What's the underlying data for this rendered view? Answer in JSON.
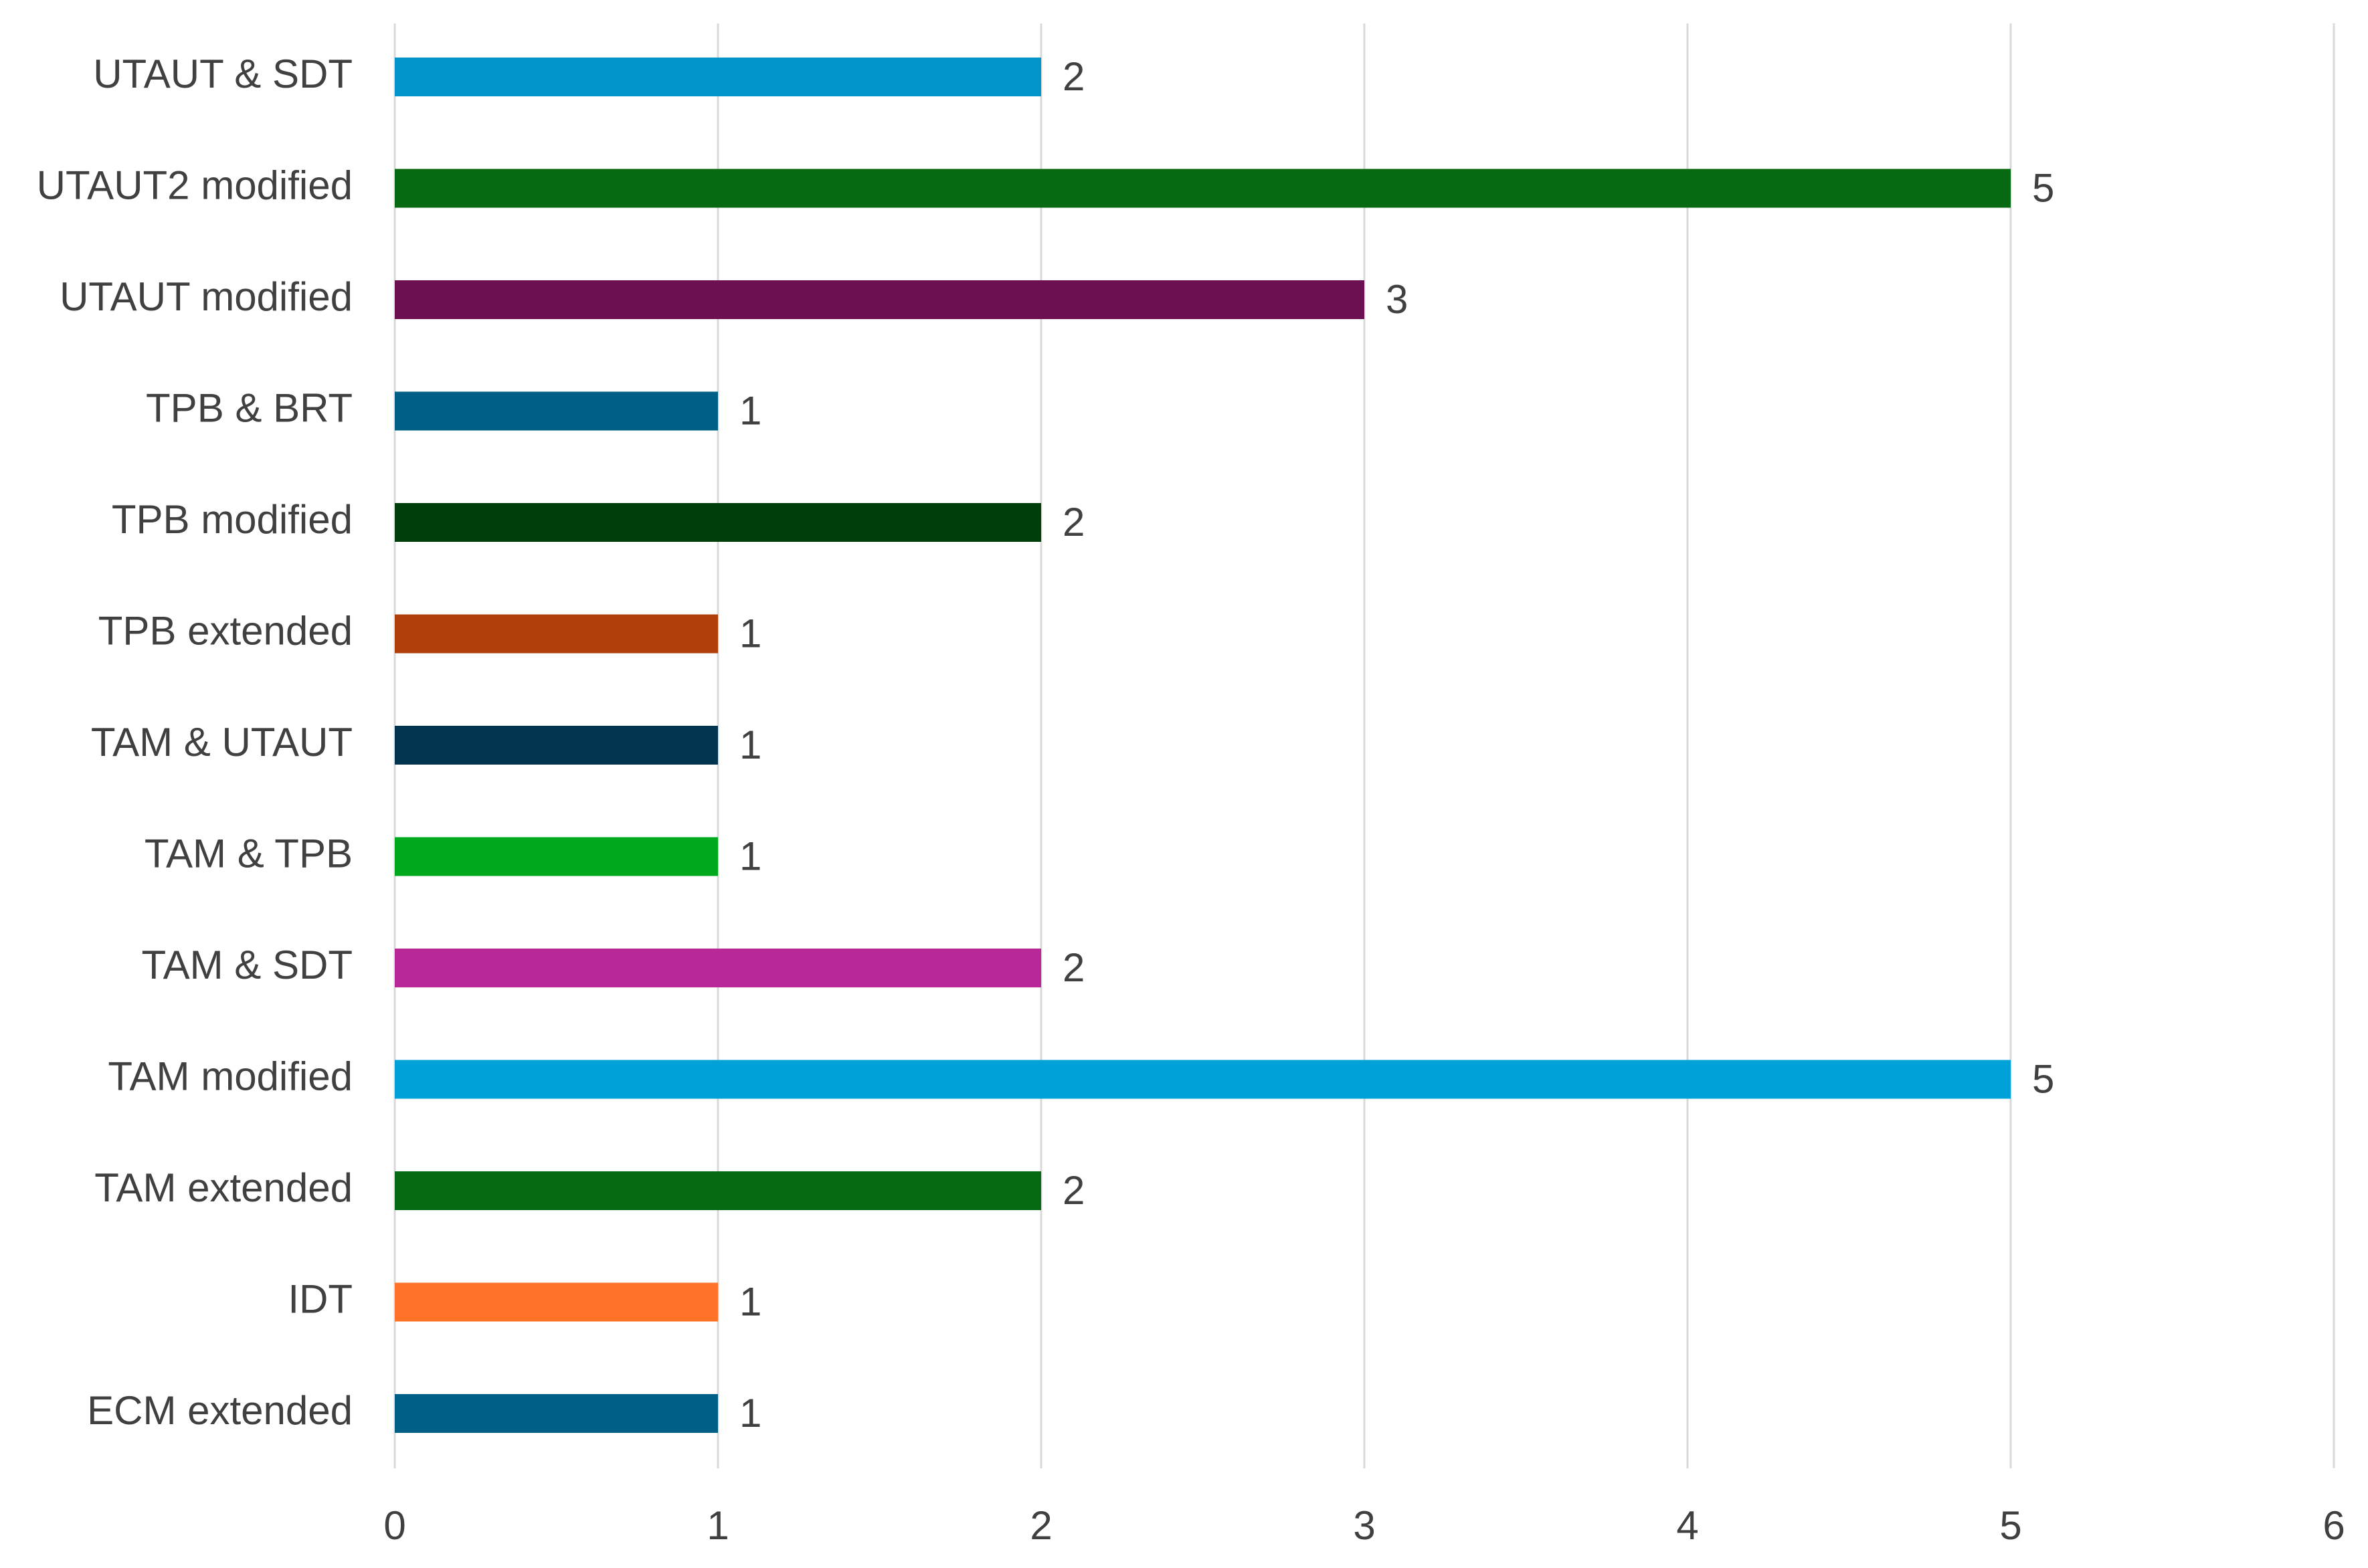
{
  "chart_data": {
    "type": "bar",
    "orientation": "horizontal",
    "title": "",
    "xlabel": "",
    "ylabel": "",
    "categories": [
      "UTAUT & SDT",
      "UTAUT2 modified",
      "UTAUT modified",
      "TPB & BRT",
      "TPB modified",
      "TPB extended",
      "TAM & UTAUT",
      "TAM & TPB",
      "TAM & SDT",
      "TAM modified",
      "TAM extended",
      "IDT",
      "ECM extended"
    ],
    "values": [
      2,
      5,
      3,
      1,
      2,
      1,
      1,
      1,
      2,
      5,
      2,
      1,
      1
    ],
    "colors": [
      "#0094CB",
      "#076A12",
      "#6C1052",
      "#005F86",
      "#003F0C",
      "#AF3F09",
      "#00344F",
      "#00A81D",
      "#B82899",
      "#00A1D9",
      "#076A12",
      "#FF7329",
      "#005F86"
    ],
    "xlim": [
      0,
      6
    ],
    "xticks": [
      "0",
      "1",
      "2",
      "3",
      "4",
      "5",
      "6"
    ],
    "grid": true,
    "legend": "none",
    "data_labels": true
  }
}
